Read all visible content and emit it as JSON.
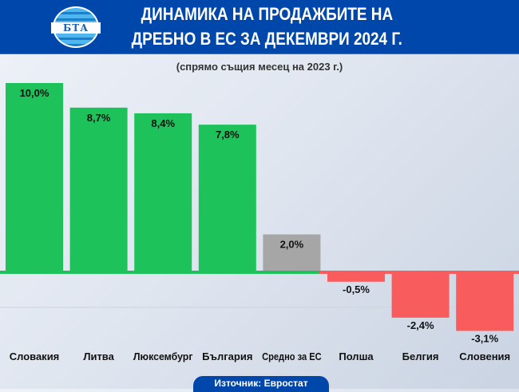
{
  "header": {
    "title_line1": "ДИНАМИКА НА ПРОДАЖБИТЕ НА",
    "title_line2": "ДРЕБНО В ЕС ЗА ДЕКЕМВРИ 2024 Г.",
    "logo_text": "БТА"
  },
  "subtitle": "(спрямо същия месец на 2023 г.)",
  "source": "Източник: Евростат",
  "colors": {
    "positive": "#1dc35a",
    "average": "#a6a6a6",
    "negative": "#f95c5c",
    "header": "#0047ab"
  },
  "chart_data": {
    "type": "bar",
    "categories": [
      "Словакия",
      "Литва",
      "Люксембург",
      "България",
      "Средно за ЕС",
      "Полша",
      "Белгия",
      "Словения"
    ],
    "values": [
      10.0,
      8.7,
      8.4,
      7.8,
      2.0,
      -0.5,
      -2.4,
      -3.1
    ],
    "labels": [
      "10,0%",
      "8,7%",
      "8,4%",
      "7,8%",
      "2,0%",
      "-0,5%",
      "-2,4%",
      "-3,1%"
    ],
    "ylim": [
      -4,
      10.5
    ],
    "grid": false
  }
}
